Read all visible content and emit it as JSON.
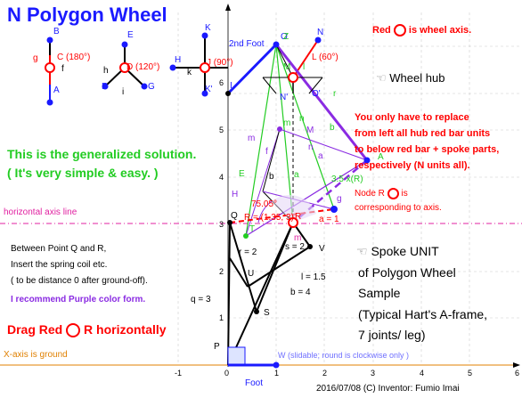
{
  "title": "N Polygon Wheel",
  "notes": {
    "wheel_axis": "Red",
    "wheel_axis2": "is wheel axis.",
    "replace1": "You only have to replace",
    "replace2": "from left all hub red bar units",
    "replace3": "to below red bar + spoke parts,",
    "replace4": "respectively (N units all).",
    "node_r1": "Node R",
    "node_r2": "is",
    "node_r3": "corresponding to axis.",
    "generalized1": "This is the generalized solution.",
    "generalized2": "( It's very simple & easy. )",
    "horizontal_axis": "horizontal axis line",
    "between1": "Between Point Q and R,",
    "between2": "Insert the spring coil etc.",
    "between3": "( to be distance 0 after ground-off).",
    "recommend": "I recommend Purple color form.",
    "drag": "Drag Red",
    "drag2": "R horizontally",
    "x_axis_ground": "X-axis is ground",
    "wheel_hub": "Wheel hub",
    "spoke1": "Spoke UNIT",
    "spoke2": "of Polygon Wheel",
    "spoke3": "Sample",
    "spoke4": "(Typical Hart's A-frame,",
    "spoke5": "7 joints/ leg)",
    "footer": "2016/07/08 (C) Inventor: Fumio Imai",
    "w_label": "W (slidable; round is clockwise only )",
    "foot": "Foot",
    "second_foot": "2nd Foot",
    "hand_icon": "☜"
  },
  "labels": {
    "B": "B",
    "A": "A",
    "C": "C (180°)",
    "g1": "g",
    "E": "E",
    "D": "D (120°)",
    "F": "F",
    "G": "G",
    "h": "h",
    "i": "i",
    "H": "H",
    "K": "K",
    "J": "J (90°)",
    "Kp": "K'",
    "I": "I",
    "k": "k",
    "N": "N",
    "L": "L (60°)",
    "O": "O",
    "Z": "Z",
    "M": "M",
    "Np": "N'",
    "Op": "O'",
    "R": "R",
    "Q": "Q",
    "T": "T",
    "U": "U",
    "S": "S",
    "V": "V",
    "P": "P",
    "E1": "E",
    "H1": "H",
    "a2": "a",
    "A1": "A",
    "M1": "M",
    "n1": "n",
    "b1": "b",
    "m1": "m",
    "f3": "f",
    "b2": "b",
    "a1": "a",
    "g2": "g",
    "m2": "m",
    "n2": "n",
    "r1p": "r",
    "l1": "l",
    "angle": "75.05°",
    "Rcoord": "R = (1.35, 3)",
    "xR": "3.5 x(R)",
    "r2": "r = 2",
    "s2": "s = 2",
    "l15": "l = 1.5",
    "b4": "b = 4",
    "q3": "q = 3",
    "a1v": "a = 1",
    "f_small": "f"
  },
  "axes": {
    "x_ticks": [
      "0",
      "1",
      "2",
      "3",
      "4",
      "5",
      "6"
    ],
    "x_minus": "-1",
    "y_ticks": [
      "1",
      "2",
      "3",
      "4",
      "5",
      "6"
    ]
  },
  "colors": {
    "red": "#ff0000",
    "blue": "#1a1aff",
    "purple": "#8a2be2",
    "green": "#22cc22",
    "magenta": "#e020a0",
    "orange": "#e08000",
    "black": "#000000",
    "gray": "#808080"
  }
}
